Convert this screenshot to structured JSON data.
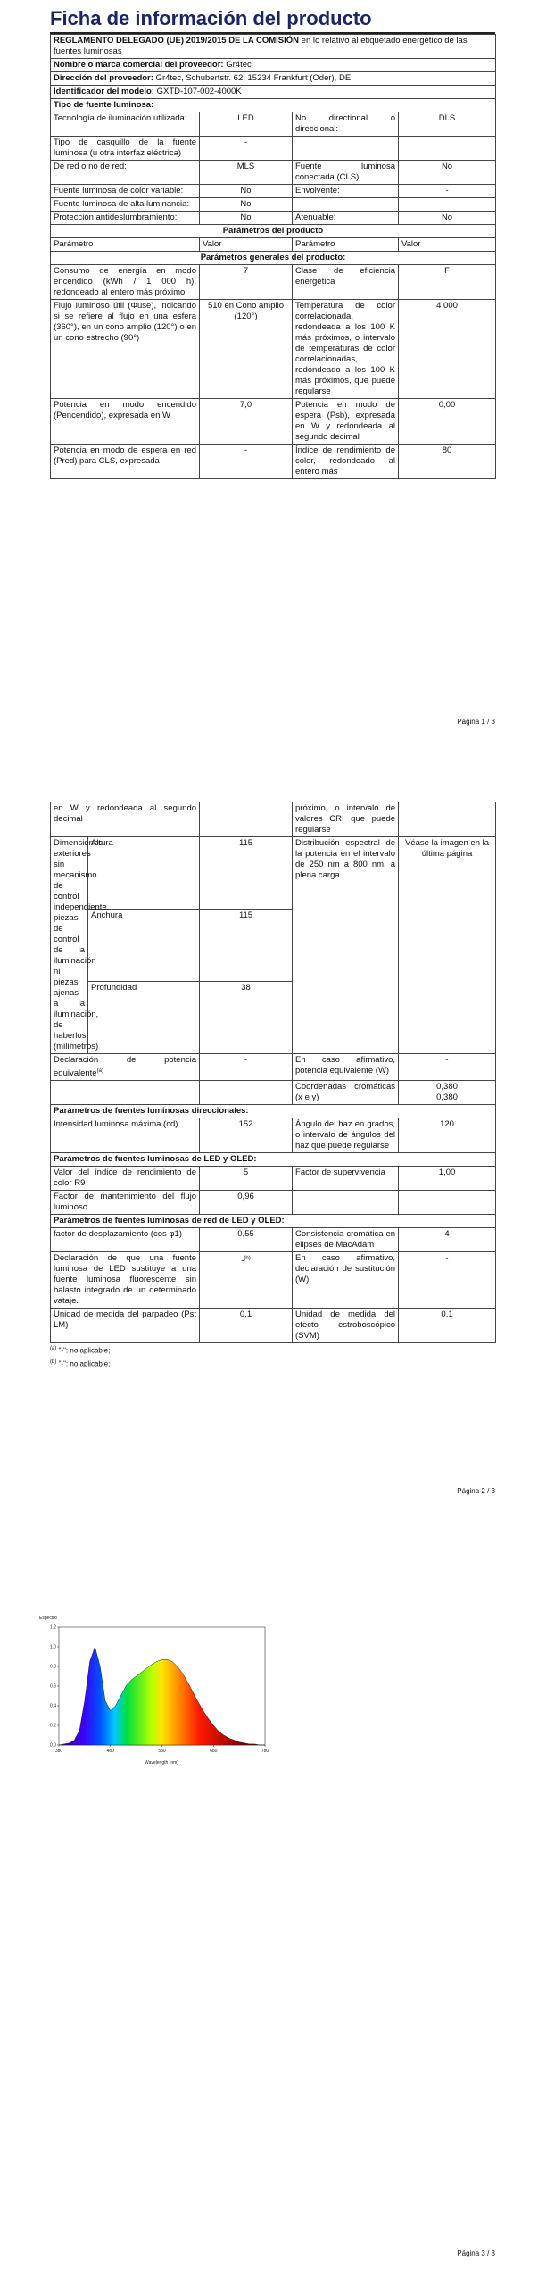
{
  "page_1": {
    "title": "Ficha de información del producto",
    "regulation_bold": "REGLAMENTO DELEGADO (UE) 2019/2015 DE LA COMISIÓN",
    "regulation_rest": "en lo relativo al etiquetado energético de las fuentes luminosas",
    "supplier": {
      "label": "Nombre o marca comercial del proveedor:",
      "value": "Gr4tec"
    },
    "address": {
      "label": "Dirección del proveedor:",
      "value": "Gr4tec, Schubertstr. 62, 15234 Frankfurt (Oder), DE"
    },
    "model": {
      "label": "Identificador del modelo:",
      "value": "GXTD-107-002-4000K"
    },
    "light_source_type": "Tipo de fuente luminosa:",
    "rows": [
      [
        "Tecnología de iluminación utilizada:",
        "LED",
        "No directional o direccional:",
        "DLS"
      ],
      [
        "Tipo de casquillo de la fuente luminosa (u otra interfaz eléctrica)",
        "-"
      ],
      [
        "De red o no de red:",
        "MLS",
        "Fuente luminosa conectada (CLS):",
        "No"
      ],
      [
        "Fuente luminosa de color variable:",
        "No",
        "Envolvente:",
        "-"
      ],
      [
        "Fuente luminosa de alta luminancia:",
        "No"
      ],
      [
        "Protección antideslumbramiento:",
        "No",
        "Atenuable:",
        "No"
      ]
    ],
    "parameters_heading": "Parámetros del producto",
    "column_headers": [
      "Parámetro",
      "Valor",
      "Parámetro",
      "Valor"
    ],
    "general_heading": "Parámetros generales del producto:",
    "general_rows": [
      [
        "Consumo de energía en modo encendido (kWh / 1 000 h), redondeado al entero más próximo",
        7,
        "Clase de eficiencia energética",
        "F"
      ],
      [
        "Flujo luminoso útil (Φuse), indicando si se refiere al flujo en una esfera (360°), en un cono amplio (120°) o en un cono estrecho (90°)",
        "510 en Cono amplio (120°)",
        "Temperatura de color correlacionada, redondeada a los 100 K más próximos, o intervalo de temperaturas de color correlacionadas, redondeado a los 100 K más próximos, que puede regularse",
        "4 000"
      ],
      [
        "Potencia en modo encendido (Pencendido), expresada en W",
        "7,0",
        "Potencia en modo de espera (Psb), expresada en W y redondeada al segundo decimal",
        "0,00"
      ],
      [
        "Potencia en modo de espera en red (Pred) para CLS, expresada",
        "-",
        "Índice de rendimiento de color, redondeado al entero más",
        80
      ]
    ],
    "page_number": "Página 1 / 3"
  },
  "page_2": {
    "continued_row": [
      "en W y redondeada al segundo decimal",
      "próximo, o intervalo de valores CRI que puede regularse"
    ],
    "dimensions": {
      "label": "Dimensiones exteriores sin mecanismo de control independiente, piezas de control de la iluminación ni piezas ajenas a la iluminación, de haberlos (milímetros)",
      "items": [
        [
          "Altura",
          115
        ],
        [
          "Anchura",
          115
        ],
        [
          "Profundidad",
          38
        ]
      ],
      "spectrum_label": "Distribución espectral de la potencia en el intervalo de 250 nm a 800 nm, a plena carga",
      "spectrum_value": "Véase la imagen en la última página"
    },
    "equivalent": {
      "label": "Declaración de potencia equivalente",
      "note": "(a)",
      "value": "-",
      "label_2": "En caso afirmativo, potencia equivalente (W)",
      "value_2": "-"
    },
    "chromaticity": {
      "label": "Coordenadas cromáticas (x e y)",
      "values": [
        "0,380",
        "0,380"
      ]
    },
    "directional_heading": "Parámetros de fuentes luminosas direccionales:",
    "directional_row": [
      "Intensidad luminosa máxima (cd)",
      152,
      "Ángulo del haz en grados, o intervalo de ángulos del haz que puede regularse",
      120
    ],
    "led_heading": "Parámetros de fuentes luminosas de LED y OLED:",
    "led_rows": [
      [
        "Valor del índice de rendimiento de color R9",
        5,
        "Factor de supervivencia",
        "1,00"
      ],
      [
        "Factor de mantenimiento del flujo luminoso",
        "0,96"
      ]
    ],
    "mains_heading": "Parámetros de fuentes luminosas de red de LED y OLED:",
    "mains_row_1": [
      "factor de desplazamiento (cos φ1)",
      "0,55",
      "Consistencia cromática en elipses de MacAdam",
      4
    ],
    "mains_row_2": {
      "label": "Declaración de que una fuente luminosa de LED sustituye a una fuente luminosa fluorescente sin balasto integrado de un determinado vataje.",
      "value": "-",
      "note": "(b)",
      "label_2": "En caso afirmativo, declaración de sustitución (W)",
      "value_2": "-"
    },
    "mains_row_3": [
      "Unidad de medida del parpadeo (Pst LM)",
      "0,1",
      "Unidad de medida del efecto estroboscópico (SVM)",
      "0,1"
    ],
    "footnotes": [
      [
        "(a)",
        "\"-\": no aplicable;"
      ],
      [
        "(b)",
        "\"-\": no aplicable;"
      ]
    ],
    "page_number": "Página 2 / 3"
  },
  "page_3": {
    "spectrum": {
      "type": "area",
      "y_label": "Espectro",
      "x_label": "Wavelength (nm)",
      "x": [
        380,
        390,
        400,
        410,
        420,
        430,
        440,
        450,
        460,
        470,
        480,
        490,
        500,
        510,
        520,
        530,
        540,
        550,
        560,
        570,
        580,
        590,
        600,
        610,
        620,
        630,
        640,
        650,
        660,
        670,
        680,
        690,
        700,
        710,
        720,
        730,
        740,
        750,
        760,
        770,
        780
      ],
      "values": [
        0,
        0.01,
        0.02,
        0.05,
        0.15,
        0.45,
        0.85,
        1.0,
        0.8,
        0.45,
        0.35,
        0.4,
        0.5,
        0.6,
        0.66,
        0.7,
        0.74,
        0.78,
        0.82,
        0.85,
        0.87,
        0.87,
        0.85,
        0.8,
        0.73,
        0.64,
        0.54,
        0.44,
        0.35,
        0.27,
        0.2,
        0.14,
        0.1,
        0.07,
        0.05,
        0.03,
        0.02,
        0.01,
        0.01,
        0,
        0
      ],
      "xlim": [
        380,
        780
      ],
      "ylim": [
        0,
        1.2
      ],
      "xticks": [
        380,
        480,
        580,
        680,
        780
      ],
      "yticks": [
        {
          "value": 0,
          "label": "0.0"
        },
        0.2,
        0.4,
        0.6,
        0.8,
        {
          "value": 1,
          "label": "1.0"
        },
        1.2
      ]
    },
    "page_number": "Página 3 / 3"
  }
}
